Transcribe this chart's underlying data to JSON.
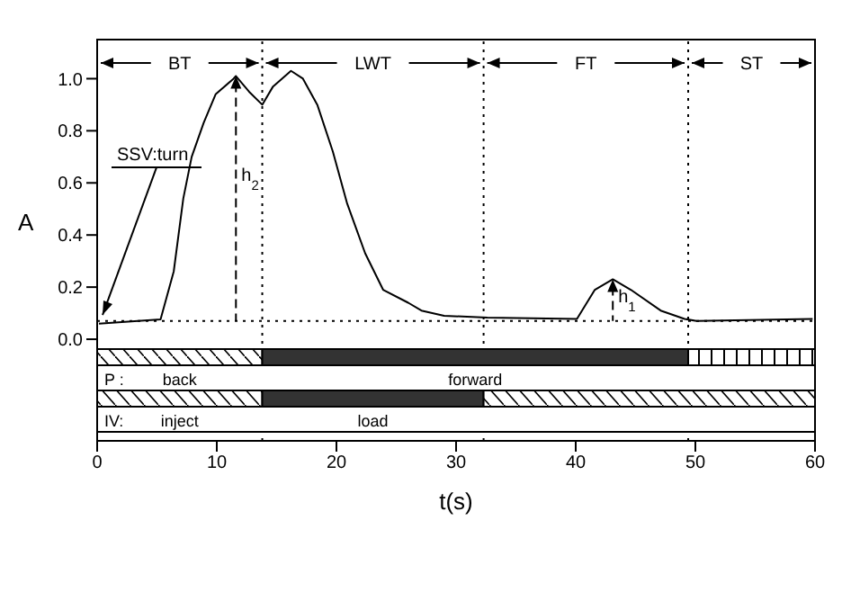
{
  "chart_data": {
    "type": "line",
    "xlabel": "t(s)",
    "ylabel": "A",
    "xlim": [
      0,
      60
    ],
    "xticks": [
      0,
      10,
      20,
      30,
      40,
      50,
      60
    ],
    "ylim": [
      -0.39,
      1.15
    ],
    "yticks": [
      {
        "value": 0,
        "label": "0.0"
      },
      {
        "value": 0.2,
        "label": "0.2"
      },
      {
        "value": 0.4,
        "label": "0.4"
      },
      {
        "value": 0.6,
        "label": "0.6"
      },
      {
        "value": 0.8,
        "label": "0.8"
      },
      {
        "value": 1,
        "label": "1.0"
      }
    ],
    "series": [
      {
        "color": "#000000",
        "x": [
          0.15,
          5.3,
          6.4,
          7.2,
          7.9,
          8.9,
          9.9,
          11.4,
          11.6,
          12.7,
          13.8,
          14.7,
          16.2,
          17.2,
          18.4,
          19.7,
          20.9,
          22.4,
          23.9,
          26,
          27.1,
          29,
          32.6,
          40.1,
          41.6,
          43.1,
          44.6,
          47.1,
          49.1,
          50.1,
          59.8
        ],
        "values": [
          0.06,
          0.076,
          0.26,
          0.54,
          0.7,
          0.83,
          0.94,
          1.0,
          1.01,
          0.95,
          0.9,
          0.97,
          1.03,
          1.0,
          0.9,
          0.72,
          0.52,
          0.33,
          0.19,
          0.14,
          0.11,
          0.09,
          0.083,
          0.078,
          0.19,
          0.23,
          0.19,
          0.11,
          0.078,
          0.07,
          0.078
        ]
      }
    ],
    "ref_lines": [
      {
        "axis": "x",
        "value": 13.8,
        "line_style": "dotted"
      },
      {
        "axis": "x",
        "value": 32.3,
        "line_style": "dotted"
      },
      {
        "axis": "x",
        "value": 49.4,
        "line_style": "dotted"
      },
      {
        "axis": "y",
        "value": 0.07,
        "line_style": "dotted"
      }
    ],
    "annotations": [
      {
        "text": "BT",
        "x": 13.8,
        "y": 1.06
      },
      {
        "text": "LWT",
        "x": 32.3,
        "y": 1.06
      },
      {
        "text": "FT",
        "x": 49.4,
        "y": 1.06
      },
      "ST",
      {
        "text": "SSV:turn",
        "x": 0.3,
        "y": 0.1
      },
      "h$_{2}$",
      {
        "text": "h$_{1}$",
        "x": 43.1,
        "y": 0.23
      },
      "P :",
      "back",
      "forward",
      "IV:",
      "inject",
      "load"
    ],
    "grid": false,
    "marker": "none",
    "line_style": "solid"
  }
}
